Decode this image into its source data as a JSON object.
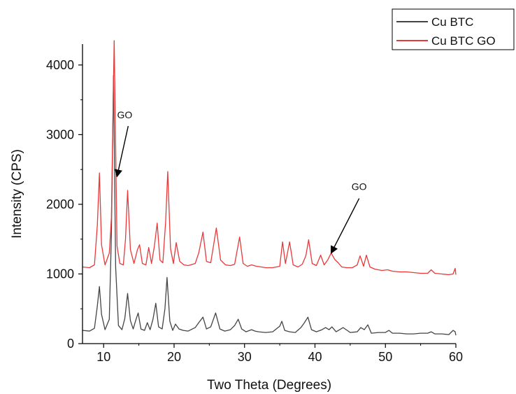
{
  "chart_data": {
    "type": "line",
    "title": "",
    "xlabel": "Two Theta (Degrees)",
    "ylabel": "Intensity (CPS)",
    "xlim": [
      7,
      60
    ],
    "ylim": [
      0,
      4300
    ],
    "xticks": [
      10,
      20,
      30,
      40,
      50,
      60
    ],
    "yticks": [
      0,
      1000,
      2000,
      3000,
      4000
    ],
    "grid": false,
    "legend_position": "top-right",
    "annotations": [
      {
        "text": "GO",
        "x": 11.9,
        "y": 2400
      },
      {
        "text": "GO",
        "x": 42.3,
        "y": 1300
      }
    ],
    "series": [
      {
        "name": "Cu BTC",
        "color": "#444444",
        "x": [
          7,
          8,
          8.7,
          9.1,
          9.4,
          9.7,
          10.2,
          10.8,
          11.1,
          11.4,
          11.7,
          12.1,
          12.6,
          13.0,
          13.4,
          13.8,
          14.2,
          14.6,
          14.9,
          15.3,
          15.8,
          16.2,
          16.6,
          17.0,
          17.4,
          17.8,
          18.3,
          18.7,
          19.0,
          19.4,
          19.8,
          20.2,
          20.7,
          21.3,
          22,
          23,
          23.5,
          24.1,
          24.6,
          25.2,
          25.9,
          26.5,
          27.2,
          28,
          28.6,
          29.1,
          29.6,
          30.2,
          31,
          31.5,
          32,
          33,
          34,
          35,
          35.3,
          35.7,
          36.4,
          37.2,
          38,
          38.5,
          39,
          39.5,
          40.2,
          41,
          41.5,
          42,
          42.4,
          43,
          43.5,
          44,
          45,
          46,
          46.5,
          47,
          47.5,
          48,
          49,
          50,
          50.5,
          51,
          52,
          53,
          54,
          55,
          56,
          56.5,
          57,
          58,
          59,
          59.6,
          59.9,
          60
        ],
        "y": [
          190,
          180,
          220,
          540,
          820,
          420,
          200,
          350,
          1550,
          3850,
          1100,
          260,
          200,
          360,
          720,
          330,
          210,
          350,
          440,
          210,
          190,
          300,
          200,
          350,
          580,
          240,
          210,
          500,
          950,
          320,
          190,
          280,
          210,
          190,
          180,
          230,
          300,
          380,
          210,
          240,
          440,
          210,
          180,
          200,
          260,
          350,
          210,
          170,
          200,
          180,
          170,
          160,
          170,
          250,
          320,
          190,
          170,
          160,
          230,
          300,
          380,
          200,
          170,
          200,
          230,
          200,
          240,
          170,
          200,
          230,
          160,
          170,
          230,
          200,
          270,
          150,
          160,
          160,
          190,
          150,
          150,
          140,
          140,
          150,
          150,
          170,
          140,
          140,
          130,
          190,
          170,
          120
        ]
      },
      {
        "name": "Cu BTC GO",
        "color": "#e8393a",
        "x": [
          7,
          8,
          8.7,
          9.1,
          9.4,
          9.7,
          10.2,
          10.8,
          11.1,
          11.5,
          11.9,
          12.3,
          12.8,
          13.1,
          13.4,
          13.8,
          14.3,
          14.8,
          15.1,
          15.5,
          16.0,
          16.4,
          16.8,
          17.2,
          17.6,
          18.0,
          18.4,
          18.8,
          19.1,
          19.5,
          19.9,
          20.3,
          20.8,
          21.4,
          22,
          23,
          23.5,
          24.1,
          24.6,
          25.2,
          26.0,
          26.6,
          27.3,
          28,
          28.6,
          29.3,
          29.8,
          30.4,
          31,
          31.7,
          32.4,
          33,
          34,
          35,
          35.4,
          35.8,
          36.4,
          36.9,
          37.6,
          38.2,
          38.7,
          39.1,
          39.6,
          40.2,
          40.8,
          41.3,
          41.8,
          42.3,
          42.8,
          43.3,
          43.8,
          44.5,
          45.3,
          46.0,
          46.4,
          46.9,
          47.3,
          47.8,
          48.5,
          49.5,
          50.3,
          51,
          52,
          53,
          54,
          55,
          56,
          56.5,
          57,
          58,
          59,
          59.6,
          59.9,
          60
        ],
        "y": [
          1100,
          1090,
          1130,
          1700,
          2450,
          1420,
          1130,
          1300,
          1800,
          4350,
          1400,
          1150,
          1130,
          1500,
          2200,
          1350,
          1150,
          1350,
          1420,
          1150,
          1130,
          1380,
          1150,
          1400,
          1730,
          1200,
          1160,
          1750,
          2470,
          1360,
          1150,
          1450,
          1180,
          1130,
          1120,
          1150,
          1300,
          1600,
          1180,
          1160,
          1660,
          1200,
          1130,
          1120,
          1140,
          1530,
          1150,
          1110,
          1130,
          1110,
          1100,
          1090,
          1090,
          1110,
          1460,
          1150,
          1460,
          1130,
          1100,
          1140,
          1260,
          1490,
          1150,
          1120,
          1270,
          1130,
          1200,
          1300,
          1210,
          1160,
          1100,
          1090,
          1090,
          1130,
          1260,
          1110,
          1270,
          1100,
          1070,
          1050,
          1060,
          1040,
          1030,
          1030,
          1020,
          1010,
          1010,
          1060,
          1010,
          1000,
          990,
          1000,
          1080,
          990
        ]
      }
    ]
  }
}
